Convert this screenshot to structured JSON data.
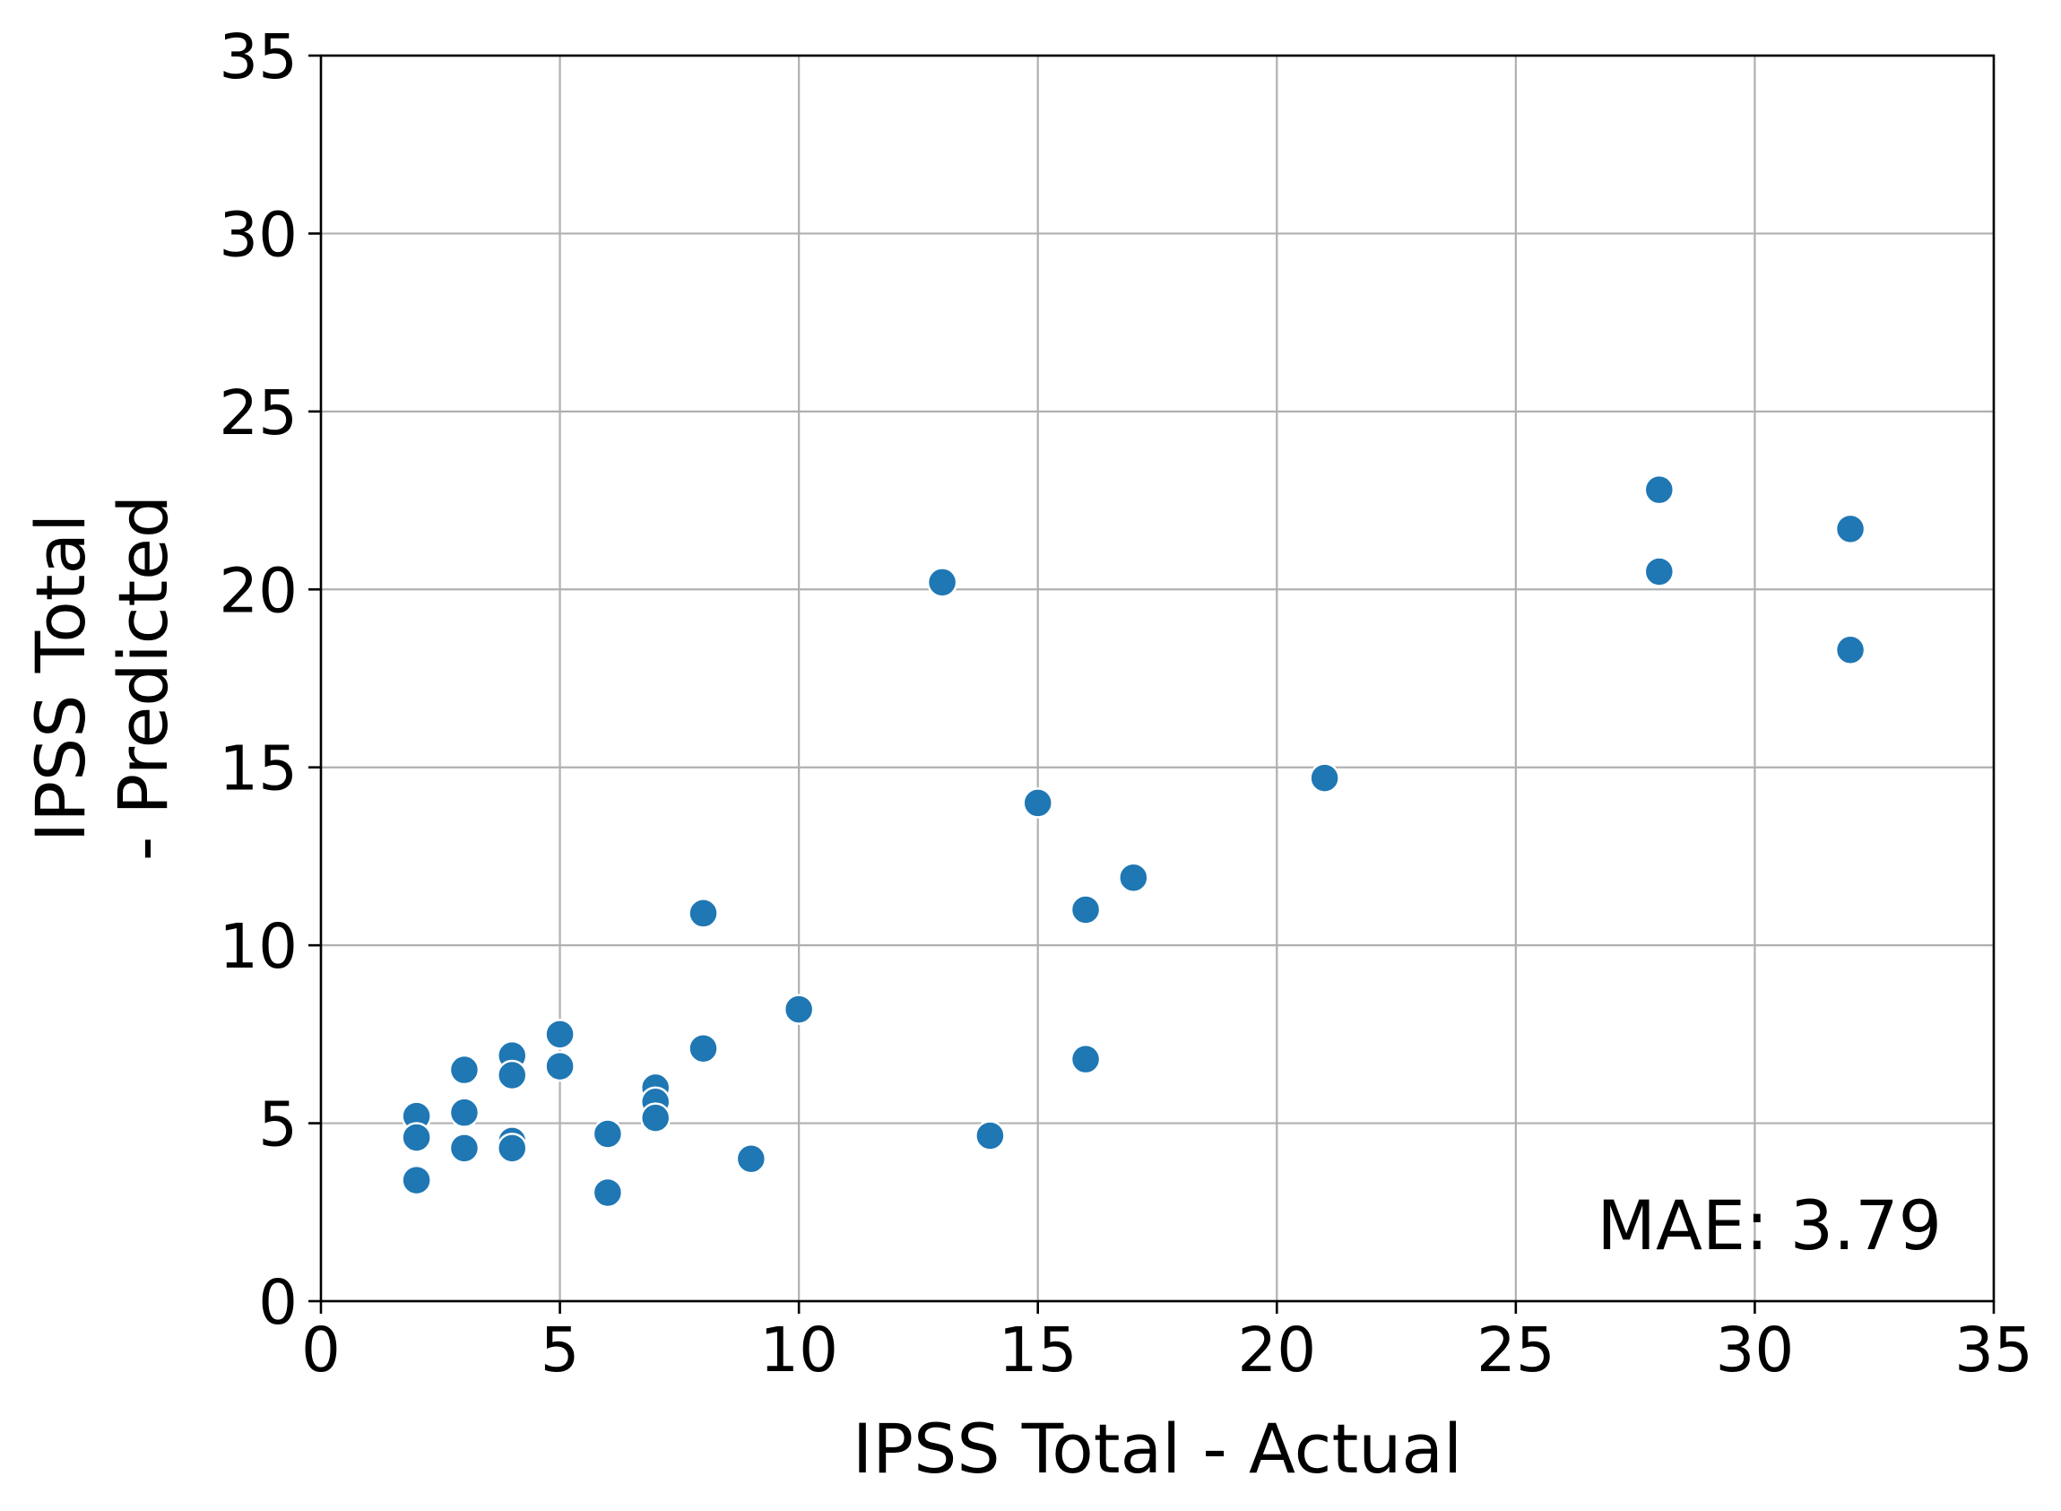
{
  "chart_data": {
    "type": "scatter",
    "title": "",
    "xlabel": "IPSS Total - Actual",
    "ylabel_lines": [
      "IPSS Total",
      "- Predicted"
    ],
    "xlim": [
      0,
      35
    ],
    "ylim": [
      0,
      35
    ],
    "xticks": [
      0,
      5,
      10,
      15,
      20,
      25,
      30,
      35
    ],
    "yticks": [
      0,
      5,
      10,
      15,
      20,
      25,
      30,
      35
    ],
    "grid": true,
    "marker_color": "#1f77b4",
    "annotation": "MAE: 3.79",
    "annotation_position": "bottom-right",
    "series": [
      {
        "points": [
          [
            2,
            5.2
          ],
          [
            2,
            4.6
          ],
          [
            2,
            3.4
          ],
          [
            3,
            6.5
          ],
          [
            3,
            5.3
          ],
          [
            3,
            4.3
          ],
          [
            4,
            6.9
          ],
          [
            4,
            6.35
          ],
          [
            4,
            4.5
          ],
          [
            4,
            4.3
          ],
          [
            5,
            7.5
          ],
          [
            5,
            6.6
          ],
          [
            6,
            4.7
          ],
          [
            6,
            3.05
          ],
          [
            7,
            6.0
          ],
          [
            7,
            5.6
          ],
          [
            7,
            5.15
          ],
          [
            8,
            10.9
          ],
          [
            8,
            7.1
          ],
          [
            9,
            4.0
          ],
          [
            10,
            8.2
          ],
          [
            13,
            20.2
          ],
          [
            14,
            4.65
          ],
          [
            15,
            14.0
          ],
          [
            16,
            11.0
          ],
          [
            16,
            6.8
          ],
          [
            17,
            11.9
          ],
          [
            21,
            14.7
          ],
          [
            28,
            22.8
          ],
          [
            28,
            20.5
          ],
          [
            32,
            21.7
          ],
          [
            32,
            18.3
          ]
        ]
      }
    ]
  }
}
